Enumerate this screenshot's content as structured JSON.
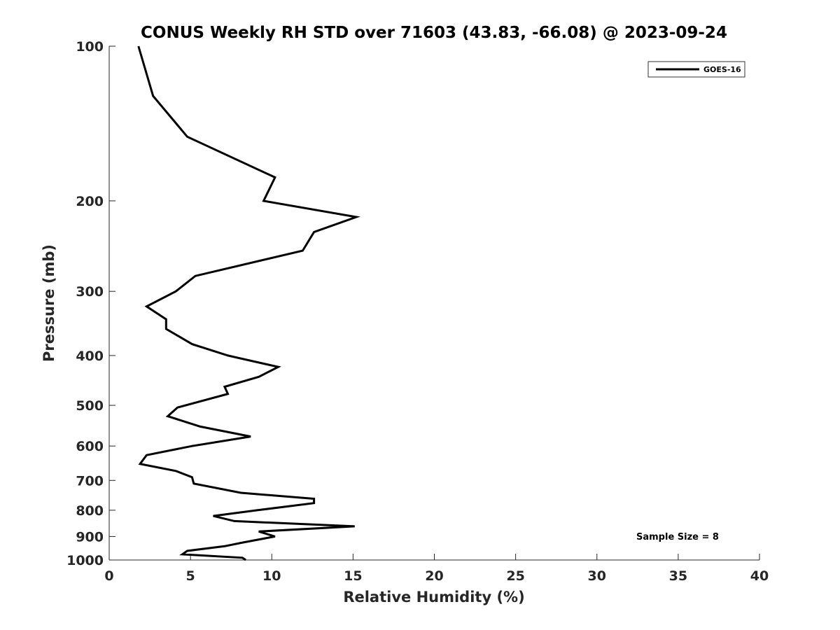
{
  "chart_data": {
    "type": "line",
    "title": "CONUS Weekly RH STD over 71603 (43.83, -66.08) @ 2023-09-24",
    "xlabel": "Relative Humidity (%)",
    "ylabel": "Pressure (mb)",
    "xlim": [
      0,
      40
    ],
    "ylim": [
      100,
      1000
    ],
    "yscale": "log",
    "y_reversed": true,
    "xticks": [
      "0",
      "5",
      "10",
      "15",
      "20",
      "25",
      "30",
      "35",
      "40"
    ],
    "yticks": [
      "100",
      "200",
      "300",
      "400",
      "500",
      "600",
      "700",
      "800",
      "900",
      "1000"
    ],
    "grid": false,
    "legend": {
      "position": "top-right",
      "entries": [
        "GOES-16"
      ]
    },
    "annotation": "Sample Size = 8",
    "series": [
      {
        "name": "GOES-16",
        "color": "#000000",
        "points": [
          [
            1.8,
            100
          ],
          [
            2.7,
            125
          ],
          [
            4.8,
            150
          ],
          [
            10.2,
            180
          ],
          [
            9.5,
            200
          ],
          [
            15.2,
            215
          ],
          [
            12.6,
            230
          ],
          [
            11.9,
            250
          ],
          [
            5.3,
            280
          ],
          [
            4.1,
            300
          ],
          [
            2.3,
            321
          ],
          [
            3.5,
            340
          ],
          [
            3.5,
            355
          ],
          [
            5.1,
            380
          ],
          [
            7.3,
            400
          ],
          [
            10.4,
            421
          ],
          [
            9.2,
            440
          ],
          [
            7.1,
            460
          ],
          [
            7.3,
            475
          ],
          [
            4.2,
            505
          ],
          [
            3.6,
            525
          ],
          [
            5.6,
            550
          ],
          [
            8.7,
            575
          ],
          [
            5.1,
            600
          ],
          [
            2.3,
            625
          ],
          [
            1.9,
            650
          ],
          [
            4.1,
            671
          ],
          [
            5.1,
            690
          ],
          [
            5.2,
            710
          ],
          [
            8.1,
            740
          ],
          [
            12.6,
            760
          ],
          [
            12.6,
            775
          ],
          [
            9.1,
            800
          ],
          [
            6.4,
            821
          ],
          [
            7.7,
            840
          ],
          [
            15.1,
            860
          ],
          [
            9.2,
            880
          ],
          [
            10.2,
            900
          ],
          [
            8.2,
            925
          ],
          [
            7.1,
            940
          ],
          [
            4.8,
            960
          ],
          [
            4.5,
            975
          ],
          [
            8.2,
            990
          ],
          [
            8.4,
            1000
          ]
        ]
      }
    ]
  }
}
